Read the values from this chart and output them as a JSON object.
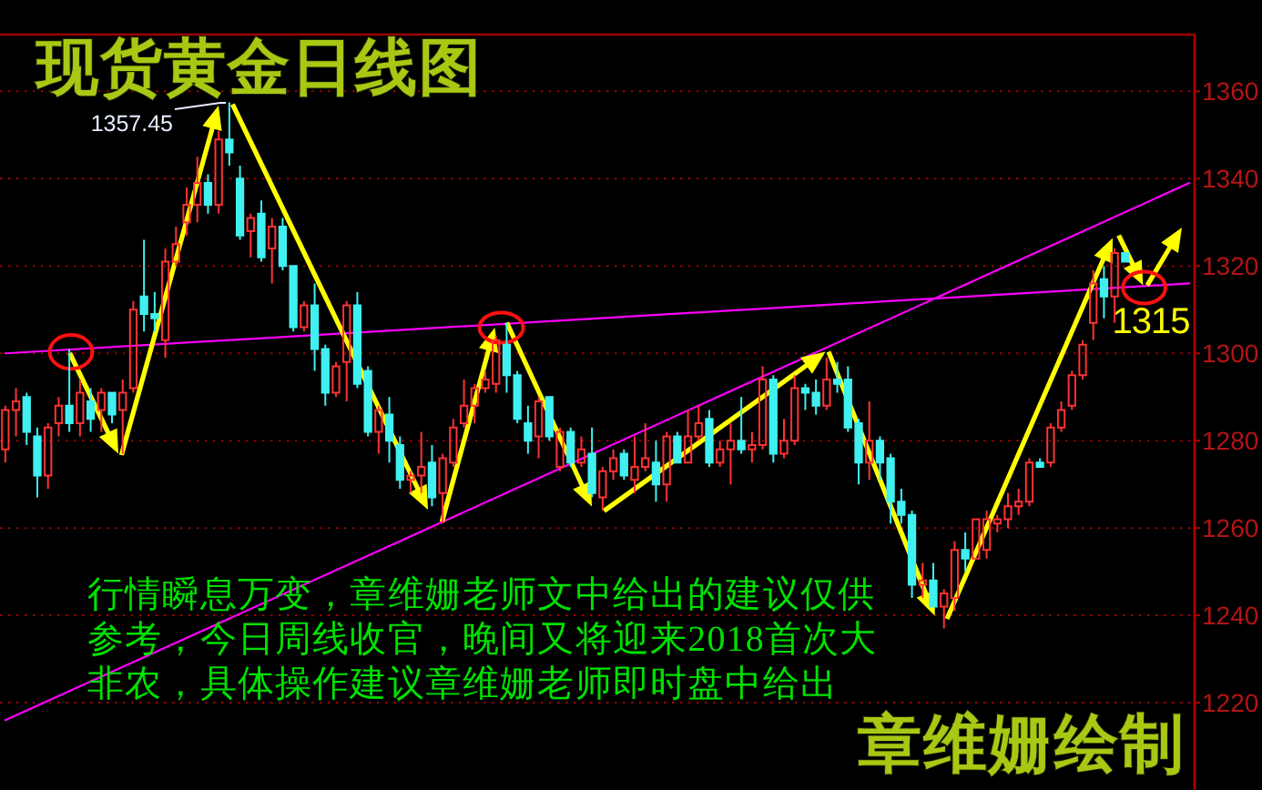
{
  "chart_data": {
    "type": "candlestick",
    "title": "现货黄金日线图",
    "categories": [
      null,
      null,
      null,
      null,
      null,
      null,
      null,
      null,
      null,
      null,
      null,
      null,
      null,
      null,
      null,
      null,
      null,
      null,
      null,
      null,
      null,
      null,
      null,
      null,
      null,
      null,
      null,
      null,
      null,
      null,
      null,
      null,
      null,
      null,
      null,
      null,
      null,
      null,
      null,
      null,
      null,
      null,
      null,
      null,
      null,
      null,
      null,
      null,
      null,
      null,
      null,
      null,
      null,
      null,
      null,
      null,
      null,
      null,
      null,
      null,
      null,
      null,
      null,
      null,
      null,
      null,
      null,
      null,
      null,
      null,
      null,
      null,
      null,
      null,
      null,
      null,
      null,
      null,
      null,
      null,
      null,
      null,
      null,
      null,
      null,
      null,
      null,
      null,
      null,
      null,
      null,
      null,
      null,
      null,
      null,
      null,
      null,
      null,
      null,
      null,
      null,
      null,
      null,
      null,
      null,
      null,
      null,
      null,
      null,
      null,
      null,
      null
    ],
    "ohlc": [
      [
        1278,
        1288,
        1275,
        1287
      ],
      [
        1287,
        1292,
        1281,
        1289
      ],
      [
        1290,
        1291,
        1279,
        1282
      ],
      [
        1281,
        1283,
        1267,
        1272
      ],
      [
        1272,
        1284,
        1269,
        1283
      ],
      [
        1284,
        1290,
        1281,
        1288
      ],
      [
        1288,
        1301,
        1282,
        1284
      ],
      [
        1284,
        1294,
        1281,
        1291
      ],
      [
        1289,
        1292,
        1282,
        1285
      ],
      [
        1287,
        1292,
        1282,
        1291
      ],
      [
        1291,
        1291,
        1284,
        1286
      ],
      [
        1287,
        1294,
        1277,
        1291
      ],
      [
        1292,
        1312,
        1291,
        1310
      ],
      [
        1313,
        1326,
        1305,
        1309
      ],
      [
        1309,
        1314,
        1305,
        1308
      ],
      [
        1303,
        1324,
        1299,
        1321
      ],
      [
        1321,
        1329,
        1320,
        1325
      ],
      [
        1330,
        1338,
        1327,
        1334
      ],
      [
        1334,
        1345,
        1330,
        1339
      ],
      [
        1339,
        1341,
        1332,
        1334
      ],
      [
        1334,
        1351,
        1332,
        1349
      ],
      [
        1349,
        1357.45,
        1343,
        1346
      ],
      [
        1340,
        1343,
        1326,
        1327
      ],
      [
        1328,
        1332,
        1322,
        1331
      ],
      [
        1332,
        1335,
        1321,
        1322
      ],
      [
        1324,
        1331,
        1316,
        1329
      ],
      [
        1329,
        1331,
        1319,
        1320
      ],
      [
        1320,
        1320,
        1305,
        1306
      ],
      [
        1306,
        1312,
        1305,
        1311
      ],
      [
        1311,
        1316,
        1296,
        1301
      ],
      [
        1301,
        1302,
        1288,
        1291
      ],
      [
        1291,
        1298,
        1290,
        1297
      ],
      [
        1298,
        1312,
        1289,
        1311
      ],
      [
        1311,
        1314,
        1292,
        1293
      ],
      [
        1296,
        1297,
        1281,
        1282
      ],
      [
        1282,
        1288,
        1277,
        1287
      ],
      [
        1286,
        1290,
        1275,
        1280
      ],
      [
        1279,
        1281,
        1269,
        1271
      ],
      [
        1271,
        1273,
        1268,
        1272
      ],
      [
        1272,
        1282,
        1268,
        1274
      ],
      [
        1275,
        1279,
        1265,
        1267
      ],
      [
        1268,
        1277,
        1261,
        1276
      ],
      [
        1275,
        1285,
        1274,
        1283
      ],
      [
        1284,
        1294,
        1283,
        1288
      ],
      [
        1288,
        1293,
        1284,
        1292
      ],
      [
        1292,
        1296,
        1291,
        1294
      ],
      [
        1293,
        1304,
        1291,
        1303
      ],
      [
        1302,
        1307,
        1291,
        1295
      ],
      [
        1295,
        1296,
        1284,
        1285
      ],
      [
        1284,
        1288,
        1277,
        1280
      ],
      [
        1281,
        1290,
        1276,
        1289
      ],
      [
        1290,
        1290,
        1280,
        1281
      ],
      [
        1274,
        1283,
        1273,
        1282
      ],
      [
        1282,
        1283,
        1274,
        1275
      ],
      [
        1275,
        1281,
        1274,
        1278
      ],
      [
        1277,
        1283,
        1267,
        1268
      ],
      [
        1267,
        1274,
        1264,
        1273
      ],
      [
        1273,
        1278,
        1271,
        1276
      ],
      [
        1277,
        1278,
        1271,
        1272
      ],
      [
        1271,
        1281,
        1268,
        1274
      ],
      [
        1274,
        1284,
        1273,
        1276
      ],
      [
        1275,
        1280,
        1266,
        1270
      ],
      [
        1270,
        1282,
        1266,
        1281
      ],
      [
        1281,
        1282,
        1275,
        1275
      ],
      [
        1275,
        1287,
        1275,
        1281
      ],
      [
        1281,
        1288,
        1280,
        1284
      ],
      [
        1285,
        1287,
        1274,
        1275
      ],
      [
        1275,
        1280,
        1274,
        1278
      ],
      [
        1278,
        1284,
        1270,
        1280
      ],
      [
        1280,
        1290,
        1277,
        1278
      ],
      [
        1278,
        1282,
        1275,
        1279
      ],
      [
        1279,
        1297,
        1278,
        1294
      ],
      [
        1294,
        1295,
        1275,
        1277
      ],
      [
        1277,
        1285,
        1276,
        1280
      ],
      [
        1280,
        1295,
        1279,
        1292
      ],
      [
        1292,
        1293,
        1287,
        1291
      ],
      [
        1291,
        1294,
        1286,
        1288
      ],
      [
        1288,
        1299,
        1287,
        1294
      ],
      [
        1294,
        1298,
        1291,
        1293
      ],
      [
        1294,
        1297,
        1282,
        1283
      ],
      [
        1284,
        1285,
        1270,
        1275
      ],
      [
        1275,
        1289,
        1271,
        1280
      ],
      [
        1280,
        1281,
        1271,
        1275
      ],
      [
        1276,
        1277,
        1261,
        1266
      ],
      [
        1266,
        1269,
        1261,
        1263
      ],
      [
        1263,
        1264,
        1244,
        1247
      ],
      [
        1247,
        1252,
        1244,
        1248
      ],
      [
        1248,
        1252,
        1242,
        1242
      ],
      [
        1242,
        1246,
        1237,
        1245
      ],
      [
        1244,
        1257,
        1241,
        1255
      ],
      [
        1255,
        1259,
        1250,
        1253
      ],
      [
        1253,
        1262,
        1253,
        1262
      ],
      [
        1255,
        1264,
        1253,
        1262
      ],
      [
        1261,
        1263,
        1259,
        1262
      ],
      [
        1262,
        1268,
        1260,
        1265
      ],
      [
        1265,
        1269,
        1263,
        1266
      ],
      [
        1266,
        1276,
        1265,
        1275
      ],
      [
        1275,
        1276,
        1274,
        1274
      ],
      [
        1275,
        1284,
        1274,
        1283
      ],
      [
        1283,
        1289,
        1282,
        1287
      ],
      [
        1288,
        1296,
        1287,
        1295
      ],
      [
        1295,
        1303,
        1294,
        1302
      ],
      [
        1307,
        1319,
        1303,
        1316
      ],
      [
        1317,
        1320,
        1308,
        1313
      ],
      [
        1313,
        1324,
        1307,
        1323
      ],
      [
        1323,
        1323,
        1321,
        1321
      ],
      null,
      null,
      null,
      null,
      null,
      null
    ],
    "colors": [
      "#ff3232",
      "#ff3232",
      "#40f0f0",
      "#40f0f0",
      "#ff3232",
      "#ff3232",
      "#40f0f0",
      "#ff3232",
      "#40f0f0",
      "#ff3232",
      "#40f0f0",
      "#ff3232",
      "#ff3232",
      "#40f0f0",
      "#40f0f0",
      "#ff3232",
      "#ff3232",
      "#ff3232",
      "#ff3232",
      "#40f0f0",
      "#ff3232",
      "#40f0f0",
      "#40f0f0",
      "#ff3232",
      "#40f0f0",
      "#ff3232",
      "#40f0f0",
      "#40f0f0",
      "#ff3232",
      "#40f0f0",
      "#40f0f0",
      "#ff3232",
      "#ff3232",
      "#40f0f0",
      "#40f0f0",
      "#ff3232",
      "#40f0f0",
      "#40f0f0",
      "#ff3232",
      "#ff3232",
      "#40f0f0",
      "#ff3232",
      "#ff3232",
      "#ff3232",
      "#ff3232",
      "#ff3232",
      "#ff3232",
      "#40f0f0",
      "#40f0f0",
      "#40f0f0",
      "#ff3232",
      "#40f0f0",
      "#ff3232",
      "#40f0f0",
      "#ff3232",
      "#40f0f0",
      "#ff3232",
      "#ff3232",
      "#40f0f0",
      "#ff3232",
      "#ff3232",
      "#40f0f0",
      "#ff3232",
      "#40f0f0",
      "#ff3232",
      "#ff3232",
      "#40f0f0",
      "#ff3232",
      "#ff3232",
      "#40f0f0",
      "#ff3232",
      "#ff3232",
      "#40f0f0",
      "#ff3232",
      "#ff3232",
      "#40f0f0",
      "#40f0f0",
      "#ff3232",
      "#40f0f0",
      "#40f0f0",
      "#40f0f0",
      "#ff3232",
      "#40f0f0",
      "#40f0f0",
      "#40f0f0",
      "#40f0f0",
      "#ff3232",
      "#40f0f0",
      "#ff3232",
      "#ff3232",
      "#40f0f0",
      "#ff3232",
      "#ff3232",
      "#ff3232",
      "#ff3232",
      "#ff3232",
      "#ff3232",
      "#40f0f0",
      "#ff3232",
      "#ff3232",
      "#ff3232",
      "#ff3232",
      "#ff3232",
      "#40f0f0",
      "#ff3232",
      "#40f0f0",
      null,
      null,
      null,
      null,
      null,
      null
    ],
    "series": [
      {
        "type": "line",
        "color": "#ff00ff",
        "values": [
          1216,
          null,
          null,
          null,
          null,
          null,
          null,
          null,
          null,
          null,
          null,
          null,
          null,
          null,
          null,
          null,
          null,
          null,
          null,
          null,
          null,
          null,
          null,
          null,
          null,
          null,
          null,
          null,
          null,
          null,
          null,
          null,
          null,
          null,
          null,
          null,
          null,
          null,
          null,
          null,
          null,
          null,
          null,
          null,
          null,
          null,
          null,
          null,
          null,
          null,
          null,
          null,
          null,
          null,
          null,
          null,
          null,
          null,
          null,
          null,
          null,
          null,
          null,
          null,
          null,
          null,
          null,
          null,
          null,
          null,
          null,
          null,
          null,
          null,
          null,
          null,
          null,
          null,
          null,
          null,
          null,
          null,
          null,
          null,
          null,
          null,
          null,
          null,
          null,
          null,
          null,
          null,
          null,
          null,
          null,
          null,
          null,
          null,
          null,
          null,
          null,
          null,
          null,
          null,
          null,
          null,
          null,
          null,
          null,
          null,
          null,
          1339
        ]
      },
      {
        "type": "line",
        "color": "#ff00ff",
        "values": [
          1300,
          null,
          null,
          null,
          null,
          null,
          null,
          null,
          null,
          null,
          null,
          null,
          null,
          null,
          null,
          null,
          null,
          null,
          null,
          null,
          null,
          null,
          null,
          null,
          null,
          null,
          null,
          null,
          null,
          null,
          null,
          null,
          null,
          null,
          null,
          null,
          null,
          null,
          null,
          null,
          null,
          null,
          null,
          null,
          null,
          null,
          null,
          null,
          null,
          null,
          null,
          null,
          null,
          null,
          null,
          null,
          null,
          null,
          null,
          null,
          null,
          null,
          null,
          null,
          null,
          null,
          null,
          null,
          null,
          null,
          null,
          null,
          null,
          null,
          null,
          null,
          null,
          null,
          null,
          null,
          null,
          null,
          null,
          null,
          null,
          null,
          null,
          null,
          null,
          null,
          null,
          null,
          null,
          null,
          null,
          null,
          null,
          null,
          null,
          null,
          null,
          null,
          null,
          null,
          null,
          null,
          null,
          null,
          null,
          null,
          null,
          1316
        ]
      }
    ],
    "ylim": [
      1200,
      1373
    ],
    "yticks": [
      1220,
      1240,
      1260,
      1280,
      1300,
      1320,
      1340,
      1360
    ],
    "grid": "y",
    "tick_labels": "y",
    "annotations": [
      "1357.45",
      "1315",
      "行情瞬息万变，章维姗老师文中给出的建议仅供参考，今日周线收官，晚间又将迎来2018首次大非农，具体操作建议章维姗老师即时盘中给出",
      "章维姗绘制"
    ]
  }
}
